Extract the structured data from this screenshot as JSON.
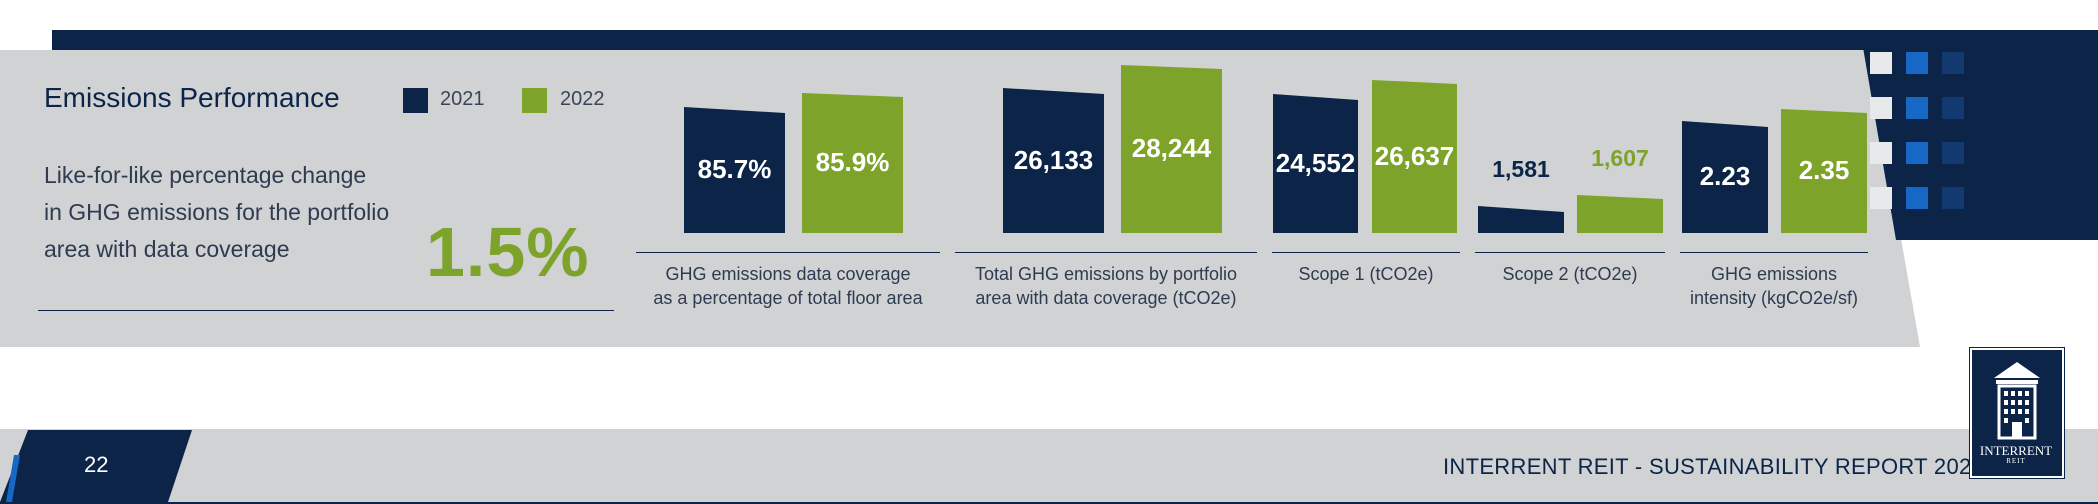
{
  "header": {
    "title": "Emissions Performance",
    "legend": [
      {
        "label": "2021",
        "color": "#0b2447"
      },
      {
        "label": "2022",
        "color": "#7ea32a"
      }
    ]
  },
  "highlight": {
    "description_lines": [
      "Like-for-like percentage change",
      "in GHG emissions for the portfolio",
      "area with data coverage"
    ],
    "value": "1.5%"
  },
  "chart_data": [
    {
      "type": "bar",
      "title": "",
      "categories": [
        "2021",
        "2022"
      ],
      "values": [
        85.7,
        85.9
      ],
      "labels": [
        "85.7%",
        "85.9%"
      ],
      "caption_lines": [
        "GHG emissions data coverage",
        "as a percentage of total floor area"
      ]
    },
    {
      "type": "bar",
      "title": "",
      "categories": [
        "2021",
        "2022"
      ],
      "values": [
        26133,
        28244
      ],
      "labels": [
        "26,133",
        "28,244"
      ],
      "caption_lines": [
        "Total GHG emissions by portfolio",
        "area with data coverage (tCO2e)"
      ]
    },
    {
      "type": "bar",
      "title": "",
      "categories": [
        "2021",
        "2022"
      ],
      "values": [
        24552,
        26637
      ],
      "labels": [
        "24,552",
        "26,637"
      ],
      "caption_lines": [
        "Scope 1 (tCO2e)"
      ]
    },
    {
      "type": "bar",
      "title": "",
      "categories": [
        "2021",
        "2022"
      ],
      "values": [
        1581,
        1607
      ],
      "labels": [
        "1,581",
        "1,607"
      ],
      "caption_lines": [
        "Scope 2 (tCO2e)"
      ]
    },
    {
      "type": "bar",
      "title": "",
      "categories": [
        "2021",
        "2022"
      ],
      "values": [
        2.23,
        2.35
      ],
      "labels": [
        "2.23",
        "2.35"
      ],
      "caption_lines": [
        "GHG emissions",
        "intensity (kgCO2e/sf)"
      ]
    }
  ],
  "footer": {
    "page_number": "22",
    "report_title": "INTERRENT REIT - SUSTAINABILITY REPORT 2022",
    "logo_text": "INTERRENT",
    "logo_subtext": "REIT"
  },
  "colors": {
    "navy": "#0b2447",
    "green": "#7ea32a",
    "panel": "#d0d2d4",
    "accent_blue": "#1668c4"
  }
}
